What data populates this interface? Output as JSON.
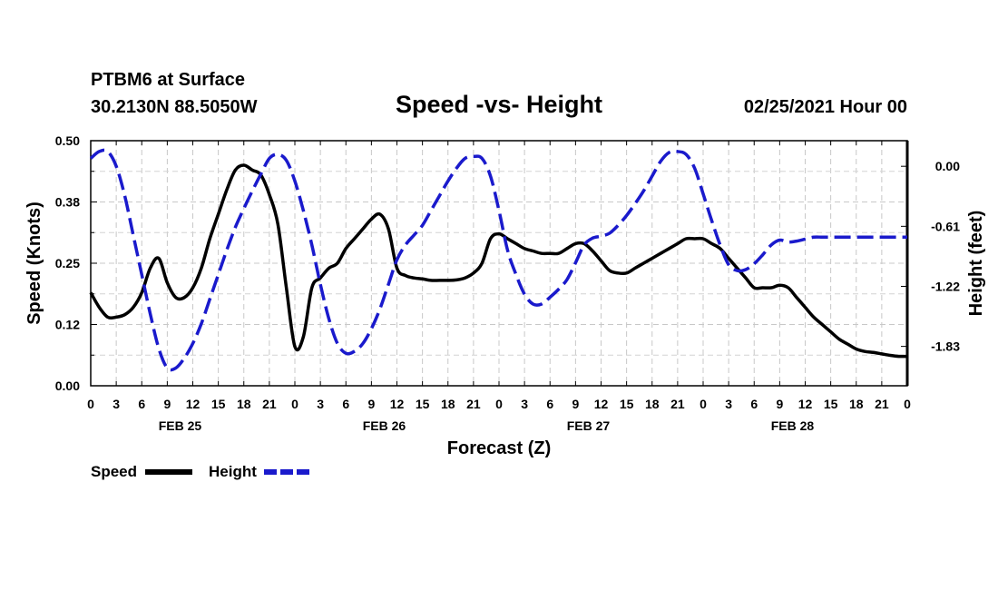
{
  "header": {
    "station": "PTBM6 at Surface",
    "coords": "30.2130N 88.5050W",
    "title": "Speed -vs- Height",
    "datetime": "02/25/2021 Hour 00"
  },
  "chart_data": {
    "type": "line",
    "title": "Speed -vs- Height",
    "xlabel": "Forecast (Z)",
    "ylabel_left": "Speed (Knots)",
    "ylabel_right": "Height (feet)",
    "x_unit": "hours from 02/25/2021 00Z",
    "xlim": [
      0,
      96
    ],
    "x_tick_labels": [
      "0",
      "3",
      "6",
      "9",
      "12",
      "15",
      "18",
      "21",
      "0",
      "3",
      "6",
      "9",
      "12",
      "15",
      "18",
      "21",
      "0",
      "3",
      "6",
      "9",
      "12",
      "15",
      "18",
      "21",
      "0",
      "3",
      "6",
      "9",
      "12",
      "15",
      "18",
      "21",
      "0"
    ],
    "day_labels": [
      "FEB 25",
      "FEB 26",
      "FEB 27",
      "FEB 28"
    ],
    "ylim_left": [
      0,
      0.5
    ],
    "y_ticks_left": [
      "0.00",
      "0.12",
      "0.25",
      "0.38",
      "0.50"
    ],
    "ylim_right": [
      -2.23,
      0.26
    ],
    "y_ticks_right": [
      "0.00",
      "-0.61",
      "-1.22",
      "-1.83"
    ],
    "grid": true,
    "legend_position": "bottom-left",
    "series": [
      {
        "name": "Speed",
        "axis": "left",
        "color": "#000000",
        "style": "solid",
        "x": [
          0,
          1,
          2,
          3,
          4,
          5,
          6,
          7,
          8,
          9,
          10,
          11,
          12,
          13,
          14,
          15,
          16,
          17,
          18,
          19,
          20,
          21,
          22,
          23,
          24,
          25,
          26,
          27,
          28,
          29,
          30,
          31,
          32,
          33,
          34,
          35,
          36,
          37,
          38,
          39,
          40,
          41,
          42,
          43,
          44,
          45,
          46,
          47,
          48,
          49,
          50,
          51,
          52,
          53,
          54,
          55,
          56,
          57,
          58,
          59,
          60,
          61,
          62,
          63,
          64,
          65,
          66,
          67,
          68,
          69,
          70,
          71,
          72,
          73,
          74,
          75,
          76,
          77,
          78,
          79,
          80,
          81,
          82,
          83,
          84,
          85,
          86,
          87,
          88,
          89,
          90,
          91,
          92,
          93,
          94,
          95,
          96
        ],
        "values": [
          0.19,
          0.16,
          0.14,
          0.14,
          0.145,
          0.16,
          0.19,
          0.24,
          0.26,
          0.21,
          0.18,
          0.18,
          0.2,
          0.24,
          0.3,
          0.35,
          0.4,
          0.44,
          0.45,
          0.44,
          0.43,
          0.39,
          0.33,
          0.2,
          0.08,
          0.1,
          0.2,
          0.22,
          0.24,
          0.25,
          0.28,
          0.3,
          0.32,
          0.34,
          0.35,
          0.32,
          0.24,
          0.225,
          0.22,
          0.218,
          0.215,
          0.215,
          0.215,
          0.216,
          0.22,
          0.23,
          0.25,
          0.3,
          0.31,
          0.3,
          0.29,
          0.28,
          0.275,
          0.27,
          0.27,
          0.27,
          0.28,
          0.29,
          0.29,
          0.275,
          0.255,
          0.235,
          0.23,
          0.23,
          0.24,
          0.25,
          0.26,
          0.27,
          0.28,
          0.29,
          0.3,
          0.3,
          0.3,
          0.29,
          0.28,
          0.26,
          0.24,
          0.22,
          0.2,
          0.2,
          0.2,
          0.205,
          0.2,
          0.18,
          0.16,
          0.14,
          0.125,
          0.11,
          0.095,
          0.085,
          0.075,
          0.07,
          0.068,
          0.065,
          0.062,
          0.06,
          0.06
        ]
      },
      {
        "name": "Height",
        "axis": "right",
        "color": "#1a1acc",
        "style": "dashed",
        "x": [
          0,
          1,
          2,
          3,
          4,
          5,
          6,
          7,
          8,
          9,
          10,
          11,
          12,
          13,
          14,
          15,
          16,
          17,
          18,
          19,
          20,
          21,
          22,
          23,
          24,
          25,
          26,
          27,
          28,
          29,
          30,
          31,
          32,
          33,
          34,
          35,
          36,
          37,
          38,
          39,
          40,
          41,
          42,
          43,
          44,
          45,
          46,
          47,
          48,
          49,
          50,
          51,
          52,
          53,
          54,
          55,
          56,
          57,
          58,
          59,
          60,
          61,
          62,
          63,
          64,
          65,
          66,
          67,
          68,
          69,
          70,
          71,
          72,
          73,
          74,
          75,
          76,
          77,
          78,
          79,
          80,
          81,
          82,
          83,
          84,
          85,
          86,
          87,
          88,
          89,
          90,
          91,
          92,
          93,
          94,
          95,
          96
        ],
        "values": [
          0.08,
          0.15,
          0.15,
          0.0,
          -0.3,
          -0.7,
          -1.1,
          -1.5,
          -1.85,
          -2.05,
          -2.05,
          -1.95,
          -1.8,
          -1.6,
          -1.35,
          -1.1,
          -0.85,
          -0.62,
          -0.43,
          -0.25,
          -0.08,
          0.08,
          0.12,
          0.06,
          -0.15,
          -0.45,
          -0.8,
          -1.2,
          -1.55,
          -1.8,
          -1.9,
          -1.88,
          -1.8,
          -1.65,
          -1.45,
          -1.2,
          -0.95,
          -0.8,
          -0.7,
          -0.6,
          -0.45,
          -0.3,
          -0.15,
          -0.02,
          0.08,
          0.1,
          0.08,
          -0.1,
          -0.45,
          -0.85,
          -1.1,
          -1.3,
          -1.4,
          -1.4,
          -1.33,
          -1.25,
          -1.15,
          -0.98,
          -0.8,
          -0.73,
          -0.71,
          -0.68,
          -0.6,
          -0.5,
          -0.38,
          -0.25,
          -0.1,
          0.05,
          0.14,
          0.15,
          0.12,
          -0.02,
          -0.28,
          -0.55,
          -0.8,
          -1.0,
          -1.06,
          -1.05,
          -0.99,
          -0.9,
          -0.8,
          -0.75,
          -0.77,
          -0.76,
          -0.74,
          -0.72,
          -0.72,
          -0.72,
          -0.72,
          -0.72,
          -0.72,
          -0.72,
          -0.72,
          -0.72,
          -0.72,
          -0.72,
          -0.72
        ]
      }
    ]
  },
  "legend": {
    "speed_label": "Speed",
    "height_label": "Height"
  }
}
